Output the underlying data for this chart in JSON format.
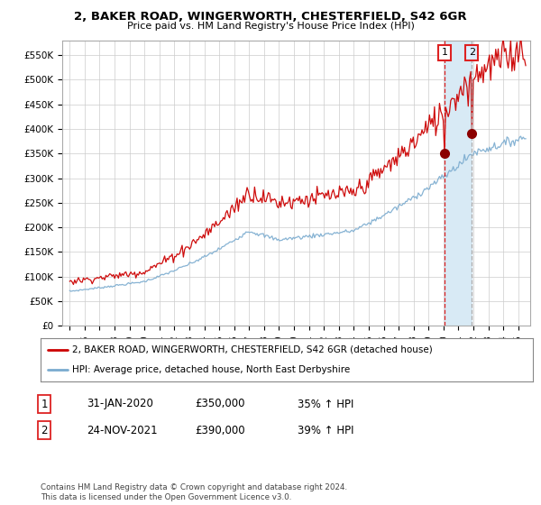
{
  "title": "2, BAKER ROAD, WINGERWORTH, CHESTERFIELD, S42 6GR",
  "subtitle": "Price paid vs. HM Land Registry's House Price Index (HPI)",
  "legend_line1": "2, BAKER ROAD, WINGERWORTH, CHESTERFIELD, S42 6GR (detached house)",
  "legend_line2": "HPI: Average price, detached house, North East Derbyshire",
  "footnote": "Contains HM Land Registry data © Crown copyright and database right 2024.\nThis data is licensed under the Open Government Licence v3.0.",
  "marker1_date": "31-JAN-2020",
  "marker1_price": "£350,000",
  "marker1_hpi": "35% ↑ HPI",
  "marker2_date": "24-NOV-2021",
  "marker2_price": "£390,000",
  "marker2_hpi": "39% ↑ HPI",
  "red_color": "#cc0000",
  "blue_color": "#7aabcf",
  "vline1_color": "#dd2222",
  "vline2_color": "#aaaaaa",
  "fill_color": "#d8eaf5",
  "bg_color": "#ffffff",
  "grid_color": "#cccccc",
  "ylim": [
    0,
    580000
  ],
  "yticks": [
    0,
    50000,
    100000,
    150000,
    200000,
    250000,
    300000,
    350000,
    400000,
    450000,
    500000,
    550000
  ],
  "t1": 2020.08,
  "t2": 2021.9,
  "sale1_price": 350000,
  "sale2_price": 390000,
  "xmin": 1994.5,
  "xmax": 2025.8
}
